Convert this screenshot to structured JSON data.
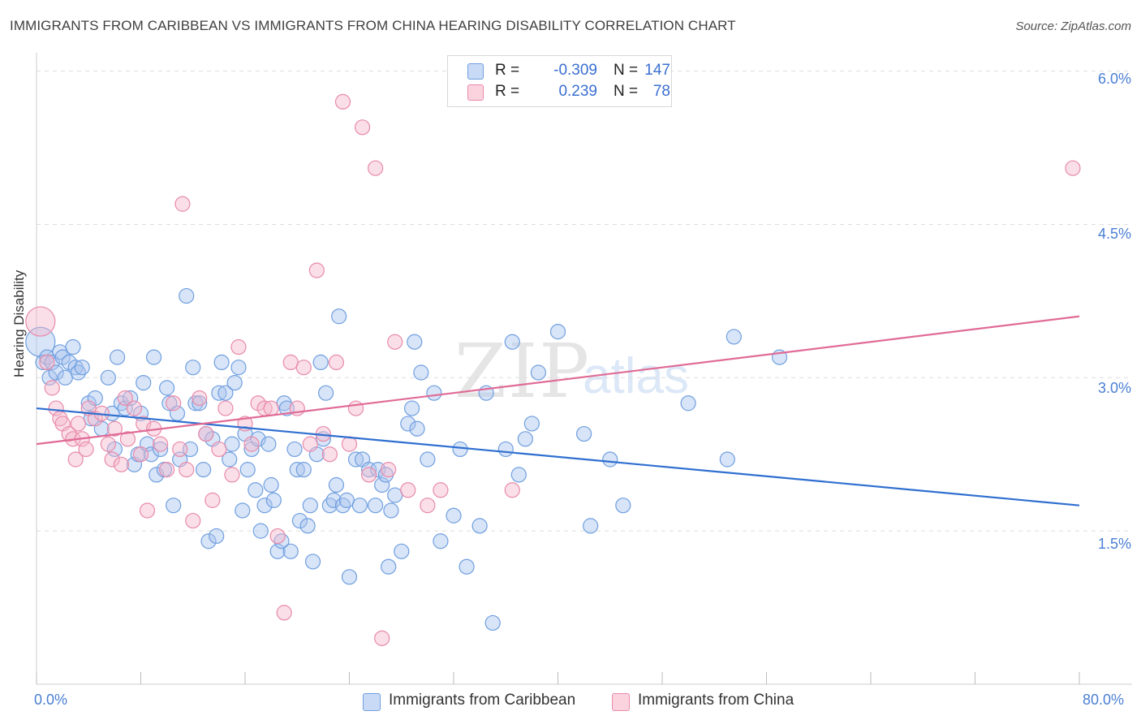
{
  "title": "IMMIGRANTS FROM CARIBBEAN VS IMMIGRANTS FROM CHINA HEARING DISABILITY CORRELATION CHART",
  "source": "Source: ZipAtlas.com",
  "watermark": {
    "zip": "ZIP",
    "atlas": "atlas"
  },
  "legend_top": {
    "rows": [
      {
        "r_label": "R =",
        "r_value": "-0.309",
        "n_label": "N =",
        "n_value": "147",
        "color": "#a9c4ee"
      },
      {
        "r_label": "R =",
        "r_value": "0.239",
        "n_label": "N =",
        "n_value": "78",
        "color": "#f5b8cb"
      }
    ]
  },
  "legend_bottom": {
    "items": [
      {
        "label": "Immigrants from Caribbean",
        "color": "#a9c4ee"
      },
      {
        "label": "Immigrants from China",
        "color": "#f5b8cb"
      }
    ]
  },
  "chart_data": {
    "type": "scatter",
    "xlabel": "",
    "ylabel": "Hearing Disability",
    "x_tick_labels": [
      "0.0%",
      "80.0%"
    ],
    "y_tick_labels": [
      "1.5%",
      "3.0%",
      "4.5%",
      "6.0%"
    ],
    "y_tick_values": [
      1.5,
      3.0,
      4.5,
      6.0
    ],
    "xlim": [
      0,
      80
    ],
    "ylim": [
      0.0,
      6.1
    ],
    "grid": true,
    "legend_position": "top-center",
    "series": [
      {
        "name": "Immigrants from Caribbean",
        "color": "#6f9fe0",
        "fill": "#a9c4ee",
        "trend": {
          "x": [
            0,
            80
          ],
          "y": [
            2.7,
            1.75
          ]
        },
        "points": [
          [
            0.3,
            3.35
          ],
          [
            0.5,
            3.15
          ],
          [
            0.8,
            3.2
          ],
          [
            1.0,
            3.0
          ],
          [
            1.2,
            3.15
          ],
          [
            1.5,
            3.05
          ],
          [
            1.8,
            3.25
          ],
          [
            2.0,
            3.2
          ],
          [
            2.2,
            3.0
          ],
          [
            2.5,
            3.15
          ],
          [
            2.8,
            3.3
          ],
          [
            3.0,
            3.1
          ],
          [
            3.2,
            3.05
          ],
          [
            3.5,
            3.1
          ],
          [
            4.0,
            2.75
          ],
          [
            4.2,
            2.6
          ],
          [
            4.5,
            2.8
          ],
          [
            5.0,
            2.5
          ],
          [
            5.5,
            3.0
          ],
          [
            5.8,
            2.65
          ],
          [
            6.0,
            2.3
          ],
          [
            6.2,
            3.2
          ],
          [
            6.5,
            2.75
          ],
          [
            6.8,
            2.7
          ],
          [
            7.2,
            2.8
          ],
          [
            7.5,
            2.15
          ],
          [
            7.8,
            2.25
          ],
          [
            8.0,
            2.65
          ],
          [
            8.2,
            2.95
          ],
          [
            8.5,
            2.35
          ],
          [
            8.8,
            2.25
          ],
          [
            9.0,
            3.2
          ],
          [
            9.2,
            2.05
          ],
          [
            9.5,
            2.3
          ],
          [
            9.8,
            2.1
          ],
          [
            10.0,
            2.9
          ],
          [
            10.2,
            2.75
          ],
          [
            10.5,
            1.75
          ],
          [
            10.8,
            2.65
          ],
          [
            11.0,
            2.2
          ],
          [
            11.5,
            3.8
          ],
          [
            11.8,
            2.3
          ],
          [
            12.0,
            3.1
          ],
          [
            12.2,
            2.75
          ],
          [
            12.5,
            2.75
          ],
          [
            12.8,
            2.1
          ],
          [
            13.0,
            2.45
          ],
          [
            13.2,
            1.4
          ],
          [
            13.5,
            2.4
          ],
          [
            13.8,
            1.45
          ],
          [
            14.0,
            2.85
          ],
          [
            14.2,
            3.15
          ],
          [
            14.5,
            2.85
          ],
          [
            14.8,
            2.2
          ],
          [
            15.0,
            2.35
          ],
          [
            15.2,
            2.95
          ],
          [
            15.5,
            3.1
          ],
          [
            15.8,
            1.7
          ],
          [
            16.0,
            2.45
          ],
          [
            16.2,
            2.1
          ],
          [
            16.5,
            2.3
          ],
          [
            16.8,
            1.9
          ],
          [
            17.0,
            2.4
          ],
          [
            17.2,
            1.5
          ],
          [
            17.5,
            1.75
          ],
          [
            17.8,
            2.35
          ],
          [
            18.0,
            1.95
          ],
          [
            18.2,
            1.8
          ],
          [
            18.5,
            1.3
          ],
          [
            18.8,
            1.4
          ],
          [
            19.0,
            2.75
          ],
          [
            19.2,
            2.7
          ],
          [
            19.5,
            1.3
          ],
          [
            19.8,
            2.3
          ],
          [
            20.0,
            2.1
          ],
          [
            20.2,
            1.6
          ],
          [
            20.5,
            2.1
          ],
          [
            20.8,
            1.55
          ],
          [
            21.0,
            1.75
          ],
          [
            21.2,
            1.2
          ],
          [
            21.5,
            2.25
          ],
          [
            21.8,
            3.15
          ],
          [
            22.0,
            2.4
          ],
          [
            22.2,
            2.85
          ],
          [
            22.5,
            1.75
          ],
          [
            22.8,
            1.8
          ],
          [
            23.0,
            1.95
          ],
          [
            23.2,
            3.6
          ],
          [
            23.5,
            1.75
          ],
          [
            23.8,
            1.8
          ],
          [
            24.0,
            1.05
          ],
          [
            24.5,
            2.2
          ],
          [
            24.8,
            1.75
          ],
          [
            25.0,
            2.2
          ],
          [
            25.5,
            2.1
          ],
          [
            26.0,
            1.75
          ],
          [
            26.2,
            2.1
          ],
          [
            26.5,
            1.95
          ],
          [
            26.8,
            2.05
          ],
          [
            27.0,
            1.15
          ],
          [
            27.2,
            1.7
          ],
          [
            27.5,
            1.85
          ],
          [
            28.0,
            1.3
          ],
          [
            28.5,
            2.55
          ],
          [
            28.8,
            2.7
          ],
          [
            29.0,
            3.35
          ],
          [
            29.2,
            2.5
          ],
          [
            29.5,
            3.05
          ],
          [
            30.0,
            2.2
          ],
          [
            30.5,
            2.85
          ],
          [
            31.0,
            1.4
          ],
          [
            32.0,
            1.65
          ],
          [
            32.5,
            2.3
          ],
          [
            33.0,
            1.15
          ],
          [
            34.0,
            1.55
          ],
          [
            34.5,
            2.85
          ],
          [
            35.0,
            0.6
          ],
          [
            36.0,
            2.3
          ],
          [
            36.5,
            3.35
          ],
          [
            37.0,
            2.05
          ],
          [
            37.5,
            2.4
          ],
          [
            38.0,
            2.55
          ],
          [
            38.5,
            3.05
          ],
          [
            40.0,
            3.45
          ],
          [
            42.0,
            2.45
          ],
          [
            42.5,
            1.55
          ],
          [
            44.0,
            2.2
          ],
          [
            45.0,
            1.75
          ],
          [
            50.0,
            2.75
          ],
          [
            53.0,
            2.2
          ],
          [
            53.5,
            3.4
          ],
          [
            57.0,
            3.2
          ]
        ]
      },
      {
        "name": "Immigrants from China",
        "color": "#e88aaa",
        "fill": "#f5b8cb",
        "trend": {
          "x": [
            0,
            80
          ],
          "y": [
            2.35,
            3.6
          ]
        },
        "points": [
          [
            0.3,
            3.55
          ],
          [
            0.8,
            3.15
          ],
          [
            1.2,
            2.9
          ],
          [
            1.5,
            2.7
          ],
          [
            1.8,
            2.6
          ],
          [
            2.0,
            2.55
          ],
          [
            2.5,
            2.45
          ],
          [
            2.8,
            2.4
          ],
          [
            3.0,
            2.2
          ],
          [
            3.2,
            2.55
          ],
          [
            3.5,
            2.4
          ],
          [
            3.8,
            2.3
          ],
          [
            4.0,
            2.7
          ],
          [
            4.5,
            2.6
          ],
          [
            5.0,
            2.65
          ],
          [
            5.5,
            2.35
          ],
          [
            5.8,
            2.2
          ],
          [
            6.0,
            2.5
          ],
          [
            6.5,
            2.15
          ],
          [
            6.8,
            2.8
          ],
          [
            7.0,
            2.4
          ],
          [
            7.5,
            2.7
          ],
          [
            8.0,
            2.25
          ],
          [
            8.2,
            2.55
          ],
          [
            8.5,
            1.7
          ],
          [
            9.0,
            2.5
          ],
          [
            9.5,
            2.35
          ],
          [
            10.0,
            2.1
          ],
          [
            10.5,
            2.75
          ],
          [
            11.0,
            2.3
          ],
          [
            11.2,
            4.7
          ],
          [
            11.5,
            2.1
          ],
          [
            12.0,
            1.6
          ],
          [
            12.5,
            2.8
          ],
          [
            13.0,
            2.45
          ],
          [
            13.5,
            1.8
          ],
          [
            14.0,
            2.3
          ],
          [
            14.5,
            2.7
          ],
          [
            15.0,
            2.05
          ],
          [
            15.5,
            3.3
          ],
          [
            16.0,
            2.55
          ],
          [
            16.5,
            2.35
          ],
          [
            17.0,
            2.75
          ],
          [
            17.5,
            2.7
          ],
          [
            18.0,
            2.7
          ],
          [
            18.5,
            1.45
          ],
          [
            19.0,
            0.7
          ],
          [
            19.5,
            3.15
          ],
          [
            20.0,
            2.7
          ],
          [
            20.5,
            3.1
          ],
          [
            21.0,
            2.35
          ],
          [
            21.5,
            4.05
          ],
          [
            22.0,
            2.45
          ],
          [
            22.5,
            2.25
          ],
          [
            23.0,
            3.15
          ],
          [
            23.5,
            5.7
          ],
          [
            24.0,
            2.35
          ],
          [
            24.5,
            2.7
          ],
          [
            25.0,
            5.45
          ],
          [
            25.5,
            2.05
          ],
          [
            26.0,
            5.05
          ],
          [
            26.5,
            0.45
          ],
          [
            27.0,
            2.1
          ],
          [
            27.5,
            3.35
          ],
          [
            28.5,
            1.9
          ],
          [
            30.0,
            1.75
          ],
          [
            31.0,
            1.9
          ],
          [
            36.5,
            1.9
          ],
          [
            79.5,
            5.05
          ]
        ]
      }
    ]
  }
}
